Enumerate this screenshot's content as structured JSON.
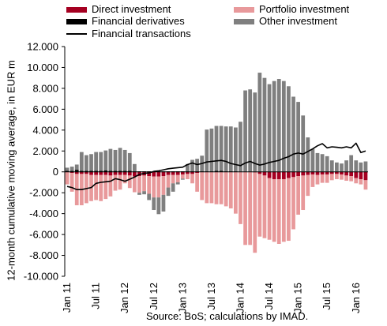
{
  "chart_data": {
    "type": "bar",
    "ylabel": "12-month cumulative moving average, in EUR m",
    "ylim": [
      -10000,
      12000
    ],
    "yticks": [
      "12.000",
      "10.000",
      "8.000",
      "6.000",
      "4.000",
      "2.000",
      "0",
      "-2.000",
      "-4.000",
      "-6.000",
      "-8.000",
      "-10.000"
    ],
    "ytick_values": [
      12000,
      10000,
      8000,
      6000,
      4000,
      2000,
      0,
      -2000,
      -4000,
      -6000,
      -8000,
      -10000
    ],
    "x_tick_labels": [
      "Jan 11",
      "Jul 11",
      "Jan 12",
      "Jul 12",
      "Jan 13",
      "Jul 13",
      "Jan 14",
      "Jul 14",
      "Jan 15",
      "Jul 15",
      "Jan 16"
    ],
    "x_tick_index": [
      0,
      6,
      12,
      18,
      24,
      30,
      36,
      42,
      48,
      54,
      60
    ],
    "categories": [
      "Jan 11",
      "Feb 11",
      "Mar 11",
      "Apr 11",
      "May 11",
      "Jun 11",
      "Jul 11",
      "Aug 11",
      "Sep 11",
      "Oct 11",
      "Nov 11",
      "Dec 11",
      "Jan 12",
      "Feb 12",
      "Mar 12",
      "Apr 12",
      "May 12",
      "Jun 12",
      "Jul 12",
      "Aug 12",
      "Sep 12",
      "Oct 12",
      "Nov 12",
      "Dec 12",
      "Jan 13",
      "Feb 13",
      "Mar 13",
      "Apr 13",
      "May 13",
      "Jun 13",
      "Jul 13",
      "Aug 13",
      "Sep 13",
      "Oct 13",
      "Nov 13",
      "Dec 13",
      "Jan 14",
      "Feb 14",
      "Mar 14",
      "Apr 14",
      "May 14",
      "Jun 14",
      "Jul 14",
      "Aug 14",
      "Sep 14",
      "Oct 14",
      "Nov 14",
      "Dec 14",
      "Jan 15",
      "Feb 15",
      "Mar 15",
      "Apr 15",
      "May 15",
      "Jun 15",
      "Jul 15",
      "Aug 15",
      "Sep 15",
      "Oct 15",
      "Nov 15",
      "Dec 15",
      "Jan 16",
      "Feb 16",
      "Mar 16"
    ],
    "legend": [
      {
        "name": "Direct investment",
        "color": "#a50021",
        "kind": "bar"
      },
      {
        "name": "Portfolio investment",
        "color": "#e8999b",
        "kind": "bar"
      },
      {
        "name": "Financial derivatives",
        "color": "#000000",
        "kind": "bar"
      },
      {
        "name": "Other investment",
        "color": "#7f7f7f",
        "kind": "bar"
      },
      {
        "name": "Financial transactions",
        "color": "#000000",
        "kind": "line"
      }
    ],
    "series": [
      {
        "name": "Direct investment",
        "color": "#a50021",
        "values": [
          0,
          -100,
          -200,
          -200,
          -200,
          -300,
          -300,
          -300,
          -300,
          -350,
          -300,
          -300,
          -300,
          -350,
          -450,
          -400,
          -350,
          -400,
          -450,
          -450,
          -400,
          -300,
          -300,
          -300,
          -250,
          -200,
          -200,
          -100,
          0,
          0,
          0,
          0,
          0,
          0,
          0,
          0,
          0,
          0,
          0,
          -50,
          -200,
          -350,
          -600,
          -700,
          -700,
          -700,
          -600,
          -500,
          -400,
          -350,
          -300,
          -250,
          -300,
          -250,
          -250,
          -200,
          -200,
          -250,
          -350,
          -400,
          -600,
          -700,
          -800
        ]
      },
      {
        "name": "Portfolio investment",
        "color": "#e8999b",
        "values": [
          -1200,
          -1800,
          -3000,
          -3000,
          -2800,
          -2500,
          -2400,
          -2500,
          -2300,
          -2000,
          -1500,
          -1400,
          -800,
          -1200,
          -1500,
          -1600,
          -1500,
          -1700,
          -2000,
          -2000,
          -1800,
          -1200,
          -800,
          -700,
          -400,
          -500,
          -900,
          -1800,
          -2700,
          -3000,
          -3000,
          -3100,
          -3100,
          -3300,
          -3500,
          -4000,
          -5000,
          -7000,
          -7000,
          -7700,
          -6000,
          -6000,
          -5900,
          -6000,
          -6200,
          -6000,
          -6000,
          -5000,
          -3700,
          -3300,
          -2000,
          -1200,
          -900,
          -800,
          -800,
          -600,
          -500,
          -500,
          -500,
          -500,
          -500,
          -500,
          -900
        ]
      },
      {
        "name": "Financial derivatives",
        "color": "#000000",
        "values": [
          100,
          100,
          200,
          100,
          100,
          100,
          100,
          100,
          150,
          100,
          100,
          100,
          100,
          100,
          50,
          50,
          50,
          50,
          50,
          50,
          50,
          50,
          50,
          50,
          50,
          50,
          50,
          50,
          50,
          50,
          50,
          100,
          100,
          50,
          50,
          50,
          0,
          0,
          0,
          0,
          0,
          0,
          0,
          0,
          0,
          0,
          0,
          0,
          0,
          0,
          0,
          0,
          0,
          0,
          0,
          0,
          0,
          0,
          0,
          0,
          0,
          0,
          0
        ]
      },
      {
        "name": "Other investment",
        "color": "#7f7f7f",
        "values": [
          300,
          400,
          500,
          1800,
          1500,
          1600,
          1800,
          1800,
          1900,
          2100,
          2000,
          2200,
          2000,
          1700,
          700,
          -200,
          -300,
          -600,
          -1200,
          -1600,
          -1600,
          -800,
          -800,
          -200,
          -100,
          700,
          1100,
          1200,
          1500,
          4000,
          4100,
          4300,
          4300,
          4300,
          4300,
          4200,
          4800,
          7800,
          7900,
          7600,
          9500,
          9000,
          8400,
          8700,
          8900,
          8700,
          8200,
          7200,
          6700,
          5400,
          3300,
          2200,
          1800,
          1700,
          1500,
          1100,
          900,
          800,
          1100,
          1600,
          1100,
          900,
          1000
        ]
      },
      {
        "name": "Portfolio investment (positive)",
        "color": "#e8999b",
        "values": [
          0,
          0,
          0,
          0,
          0,
          0,
          0,
          0,
          0,
          0,
          0,
          0,
          0,
          0,
          0,
          0,
          0,
          0,
          0,
          0,
          0,
          0,
          0,
          0,
          0,
          0,
          0,
          0,
          0,
          0,
          0,
          0,
          0,
          0,
          0,
          0,
          0,
          0,
          0,
          0,
          0,
          0,
          0,
          0,
          0,
          0,
          0,
          0,
          0,
          0,
          0,
          0,
          0,
          0,
          0,
          0,
          0,
          0,
          0,
          0,
          0,
          0,
          0
        ]
      },
      {
        "name": "Financial transactions",
        "color": "#000000",
        "kind": "line",
        "values": [
          -1400,
          -1500,
          -1700,
          -1700,
          -1600,
          -1500,
          -1100,
          -1000,
          -950,
          -900,
          -650,
          -750,
          -900,
          -700,
          -500,
          -250,
          -150,
          -100,
          50,
          100,
          200,
          300,
          350,
          400,
          450,
          700,
          850,
          700,
          800,
          950,
          1000,
          1050,
          1100,
          1000,
          800,
          700,
          600,
          850,
          1000,
          800,
          650,
          750,
          900,
          1000,
          1100,
          1300,
          1450,
          1700,
          1800,
          1700,
          1950,
          2200,
          2500,
          2700,
          2300,
          2400,
          2350,
          2300,
          2400,
          2300,
          2750,
          1850,
          2000
        ]
      }
    ]
  },
  "legend_labels": {
    "direct": "Direct investment",
    "portfolio": "Portfolio investment",
    "derivatives": "Financial derivatives",
    "other": "Other investment",
    "transactions": "Financial transactions"
  },
  "source": "Source: BoS; calculations by IMAD."
}
